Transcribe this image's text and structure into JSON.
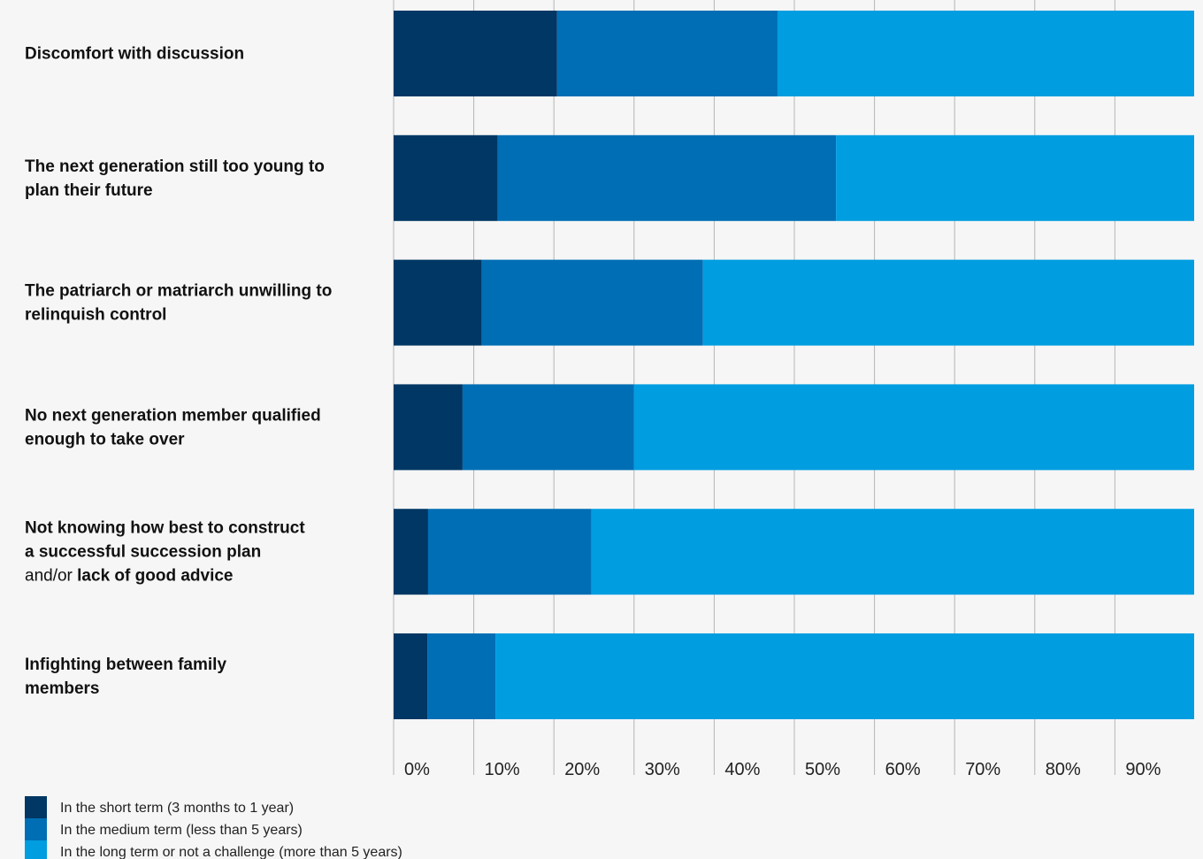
{
  "chart_data": {
    "type": "bar",
    "orientation": "horizontal",
    "stacked": true,
    "categories": [
      "Discomfort with discussion",
      "The next generation still too young to plan their future",
      "The patriarch or matriarch unwilling to relinquish control",
      "No next generation member qualified enough to take over",
      "Not knowing how best to construct a successful succession plan and/or lack of good advice",
      "Infighting between family members"
    ],
    "category_label_lines": [
      [
        [
          {
            "t": "Discomfort with discussion",
            "b": true
          }
        ]
      ],
      [
        [
          {
            "t": "The next generation still too young to",
            "b": true
          }
        ],
        [
          {
            "t": "plan their future",
            "b": true
          }
        ]
      ],
      [
        [
          {
            "t": "The patriarch or matriarch unwilling to",
            "b": true
          }
        ],
        [
          {
            "t": "relinquish control",
            "b": true
          }
        ]
      ],
      [
        [
          {
            "t": "No next generation member qualified",
            "b": true
          }
        ],
        [
          {
            "t": "enough to take over",
            "b": true
          }
        ]
      ],
      [
        [
          {
            "t": "Not knowing how best to construct",
            "b": true
          }
        ],
        [
          {
            "t": "a successful succession plan",
            "b": true
          }
        ],
        [
          {
            "t": "and/or ",
            "b": false
          },
          {
            "t": "lack of good advice",
            "b": true
          }
        ]
      ],
      [
        [
          {
            "t": "Infighting between family",
            "b": true
          }
        ],
        [
          {
            "t": "members",
            "b": true
          }
        ]
      ]
    ],
    "series": [
      {
        "name": "In the short term (3 months to 1 year)",
        "color": "#003764",
        "values": [
          20.4,
          13.0,
          11.0,
          8.6,
          4.3,
          4.2
        ]
      },
      {
        "name": "In the medium term (less than 5 years)",
        "color": "#006eb5",
        "values": [
          27.5,
          42.2,
          27.6,
          21.4,
          20.4,
          8.5
        ]
      },
      {
        "name": "In the long term or not a challenge (more than 5 years)",
        "color": "#009de0",
        "values": [
          52.1,
          44.8,
          61.4,
          70.0,
          75.3,
          87.3
        ]
      }
    ],
    "xlim": [
      0,
      100
    ],
    "xticks": [
      "0%",
      "10%",
      "20%",
      "30%",
      "40%",
      "50%",
      "60%",
      "70%",
      "80%",
      "90%"
    ],
    "grid": true,
    "legend": "bottom-left",
    "title": "",
    "xlabel": "",
    "ylabel": ""
  }
}
